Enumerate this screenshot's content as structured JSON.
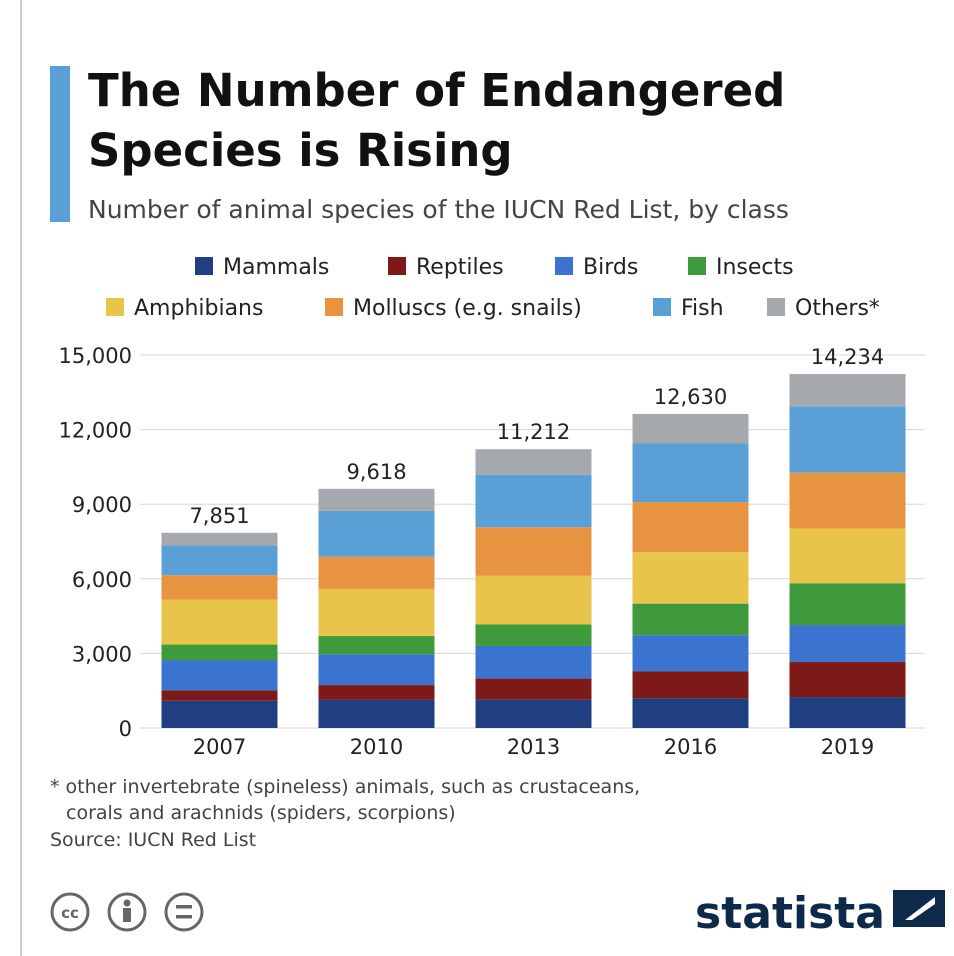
{
  "chart_data": {
    "type": "stacked_bar",
    "title": [
      "The Number of Endangered",
      "Species is Rising"
    ],
    "subtitle": "Number of animal species of the IUCN Red List, by class",
    "categories": [
      "2007",
      "2010",
      "2013",
      "2016",
      "2019"
    ],
    "series": [
      {
        "name": "Mammals",
        "color": "#1f3f80",
        "values": [
          1094,
          1131,
          1140,
          1194,
          1244
        ]
      },
      {
        "name": "Reptiles",
        "color": "#7d1a17",
        "values": [
          422,
          594,
          847,
          1079,
          1409
        ]
      },
      {
        "name": "Birds",
        "color": "#3a73d0",
        "values": [
          1217,
          1240,
          1313,
          1460,
          1486
        ]
      },
      {
        "name": "Insects",
        "color": "#3e9a3a",
        "values": [
          623,
          733,
          871,
          1268,
          1681
        ]
      },
      {
        "name": "Amphibians",
        "color": "#e8c44a",
        "values": [
          1808,
          1898,
          1950,
          2068,
          2200
        ]
      },
      {
        "name": "Molluscs (e.g. snails)",
        "color": "#e8933f",
        "values": [
          978,
          1288,
          1950,
          2013,
          2250
        ]
      },
      {
        "name": "Fish",
        "color": "#5aa0d6",
        "values": [
          1201,
          1851,
          2110,
          2359,
          2670
        ]
      },
      {
        "name": "Others*",
        "color": "#a5a9ae",
        "values": [
          508,
          883,
          1031,
          1189,
          1294
        ]
      }
    ],
    "totals": [
      7851,
      9618,
      11212,
      12630,
      14234
    ],
    "total_labels": [
      "7,851",
      "9,618",
      "11,212",
      "12,630",
      "14,234"
    ],
    "ylim": [
      0,
      15000
    ],
    "yticks": [
      0,
      {
        "value": 3000,
        "label": "3,000"
      },
      {
        "value": 6000,
        "label": "6,000"
      },
      {
        "value": 9000,
        "label": "9,000"
      },
      {
        "value": 12000,
        "label": "12,000"
      },
      {
        "value": 15000,
        "label": "15,000"
      }
    ],
    "grid": true,
    "footnote": [
      "* other invertebrate (spineless) animals, such as crustaceans,",
      "corals and arachnids (spiders, scorpions)"
    ],
    "source": "Source: IUCN Red List",
    "license": "cc",
    "brand": "statista"
  }
}
